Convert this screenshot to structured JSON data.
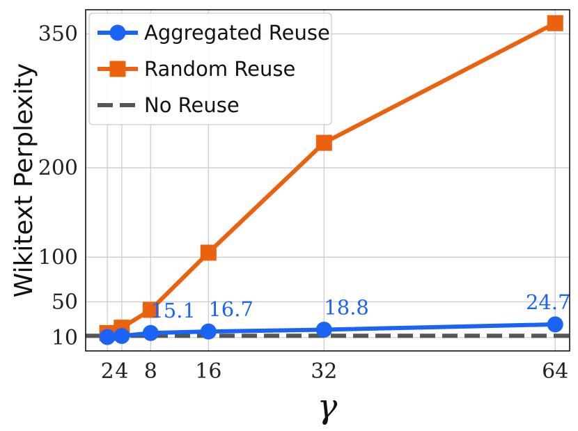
{
  "chart_data": {
    "type": "line",
    "xlabel": "γ",
    "ylabel": "Wikitext Perplexity",
    "x": [
      2,
      4,
      8,
      16,
      32,
      64
    ],
    "x_ticks": [
      "2",
      "4",
      "8",
      "16",
      "32",
      "64"
    ],
    "y_ticks": [
      10,
      50,
      100,
      200,
      350
    ],
    "xlim": [
      -1,
      66
    ],
    "ylim": [
      -5,
      377
    ],
    "grid": true,
    "legend_position": "top-left",
    "series": [
      {
        "name": "Aggregated Reuse",
        "marker": "circle",
        "color": "#1a63f5",
        "values": [
          10.6,
          11.8,
          15.1,
          16.7,
          18.8,
          24.7
        ],
        "data_labels": [
          "",
          "",
          "15.1",
          "16.7",
          "18.8",
          "24.7"
        ]
      },
      {
        "name": "Random Reuse",
        "marker": "square",
        "color": "#eb610e",
        "values": [
          15.0,
          21.0,
          41.0,
          105.0,
          228.0,
          362.0
        ],
        "data_labels": [
          "",
          "",
          "",
          "",
          "",
          ""
        ]
      }
    ],
    "reference_line": {
      "name": "No Reuse",
      "value": 12.0,
      "style": "dashed",
      "color": "#555555"
    }
  }
}
